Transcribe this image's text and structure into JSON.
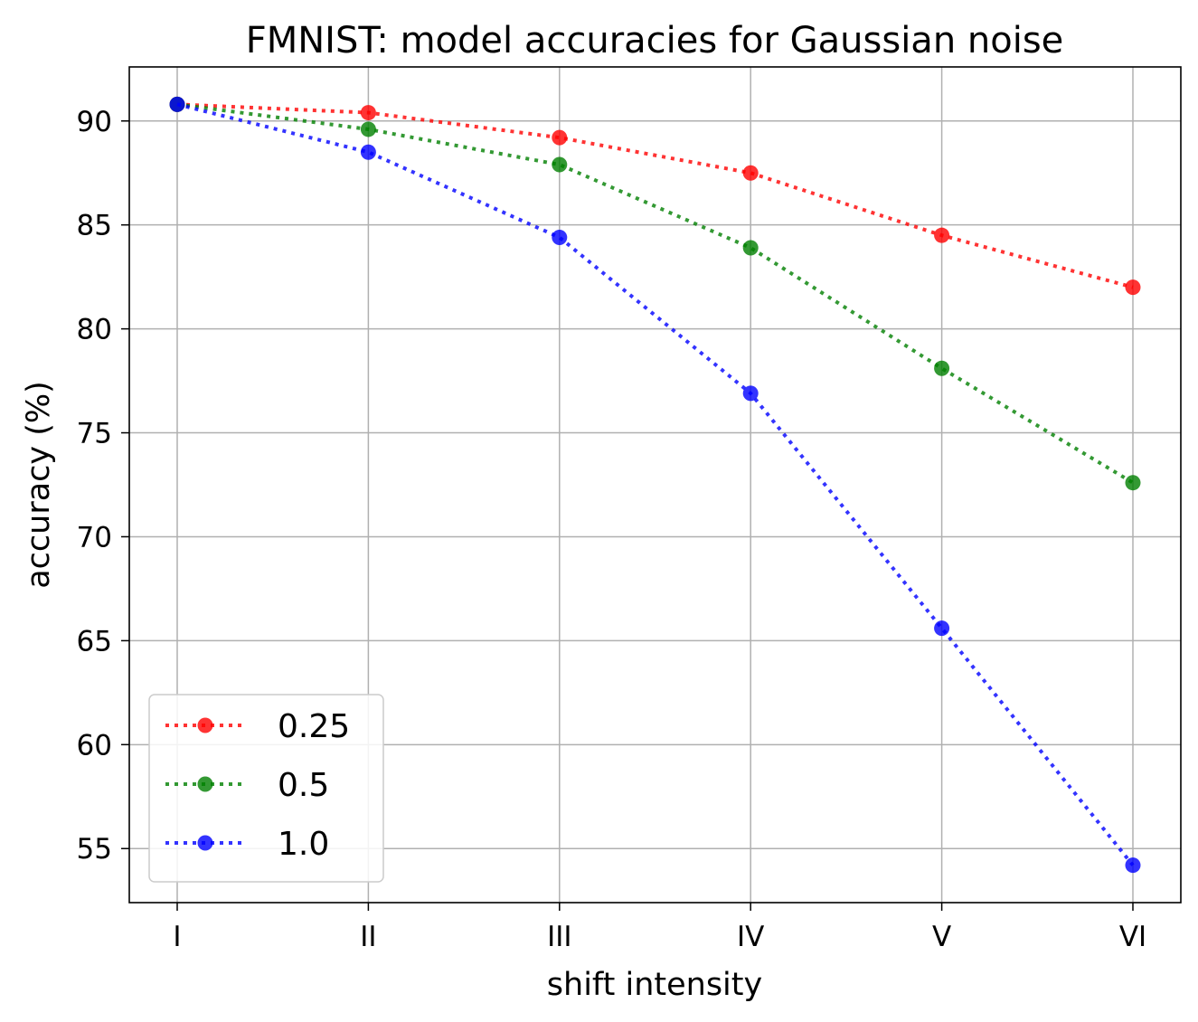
{
  "chart_data": {
    "type": "line",
    "title": "FMNIST: model accuracies for Gaussian noise",
    "xlabel": "shift intensity",
    "ylabel": "accuracy (%)",
    "categories": [
      "I",
      "II",
      "III",
      "IV",
      "V",
      "VI"
    ],
    "yticks": [
      55,
      60,
      65,
      70,
      75,
      80,
      85,
      90
    ],
    "ylim": [
      52.4,
      92.6
    ],
    "grid": true,
    "legend_position": "lower-left",
    "series": [
      {
        "name": "0.25",
        "color": "#ff0000",
        "values": [
          90.8,
          90.4,
          89.2,
          87.5,
          84.5,
          82.0
        ]
      },
      {
        "name": "0.5",
        "color": "#008000",
        "values": [
          90.8,
          89.6,
          87.9,
          83.9,
          78.1,
          72.6
        ]
      },
      {
        "name": "1.0",
        "color": "#0000ff",
        "values": [
          90.8,
          88.5,
          84.4,
          76.9,
          65.6,
          54.2
        ]
      }
    ]
  }
}
